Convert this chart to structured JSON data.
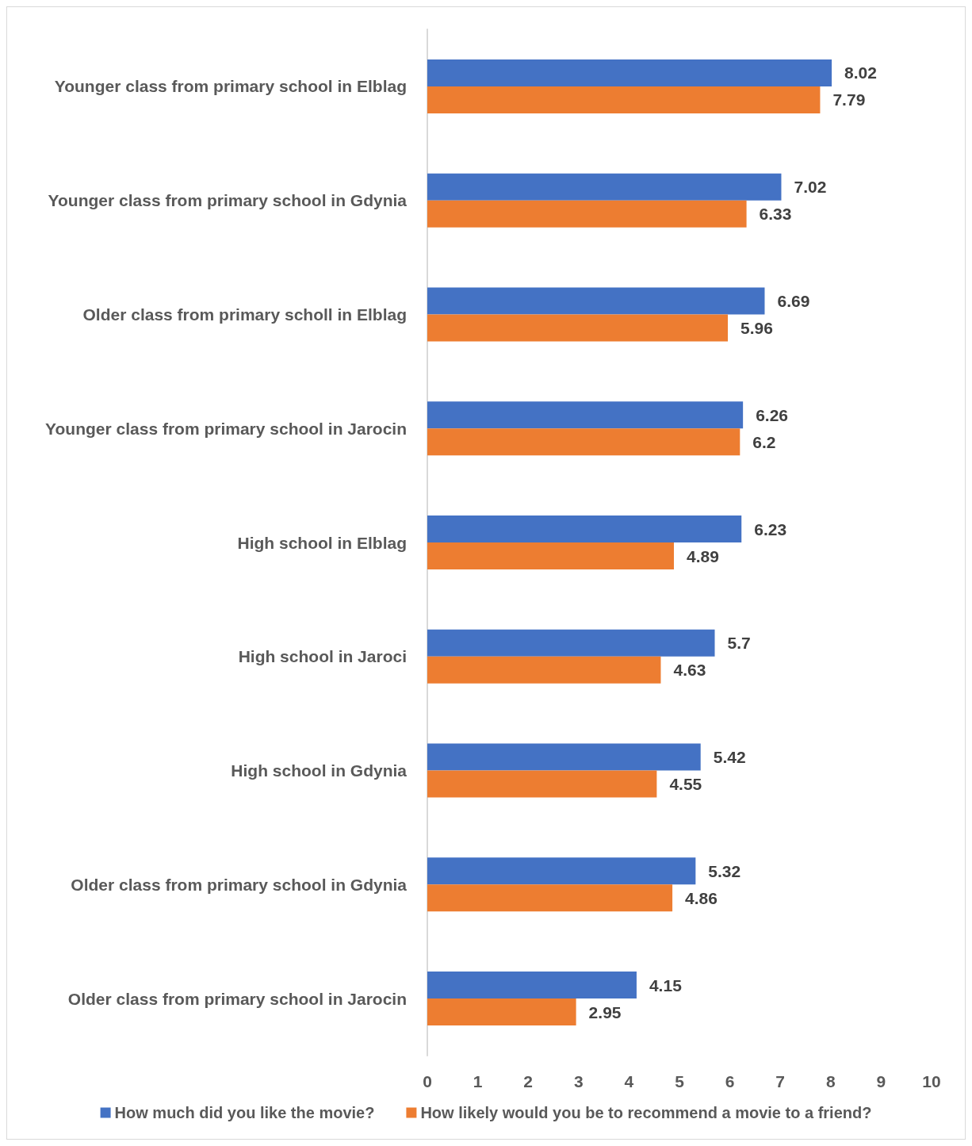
{
  "chart_data": {
    "type": "bar",
    "orientation": "horizontal",
    "categories": [
      "Younger class from primary school in Elblag",
      "Younger class from primary school in Gdynia",
      "Older class from primary scholl in Elblag",
      "Younger class from primary school in Jarocin",
      "High school in Elblag",
      "High school in Jaroci",
      "High school in Gdynia",
      "Older class from primary school in Gdynia",
      "Older class from primary school in Jarocin"
    ],
    "series": [
      {
        "name": "How much did you like the movie?",
        "color": "#4472c4",
        "values": [
          8.02,
          7.02,
          6.69,
          6.26,
          6.23,
          5.7,
          5.42,
          5.32,
          4.15
        ]
      },
      {
        "name": "How likely would you be to recommend a movie to a friend?",
        "color": "#ed7d31",
        "values": [
          7.79,
          6.33,
          5.96,
          6.2,
          4.89,
          4.63,
          4.55,
          4.86,
          2.95
        ]
      }
    ],
    "xlim": [
      0,
      10
    ],
    "xticks": [
      0,
      1,
      2,
      3,
      4,
      5,
      6,
      7,
      8,
      9,
      10
    ],
    "data_labels": true,
    "legend": "bottom"
  }
}
